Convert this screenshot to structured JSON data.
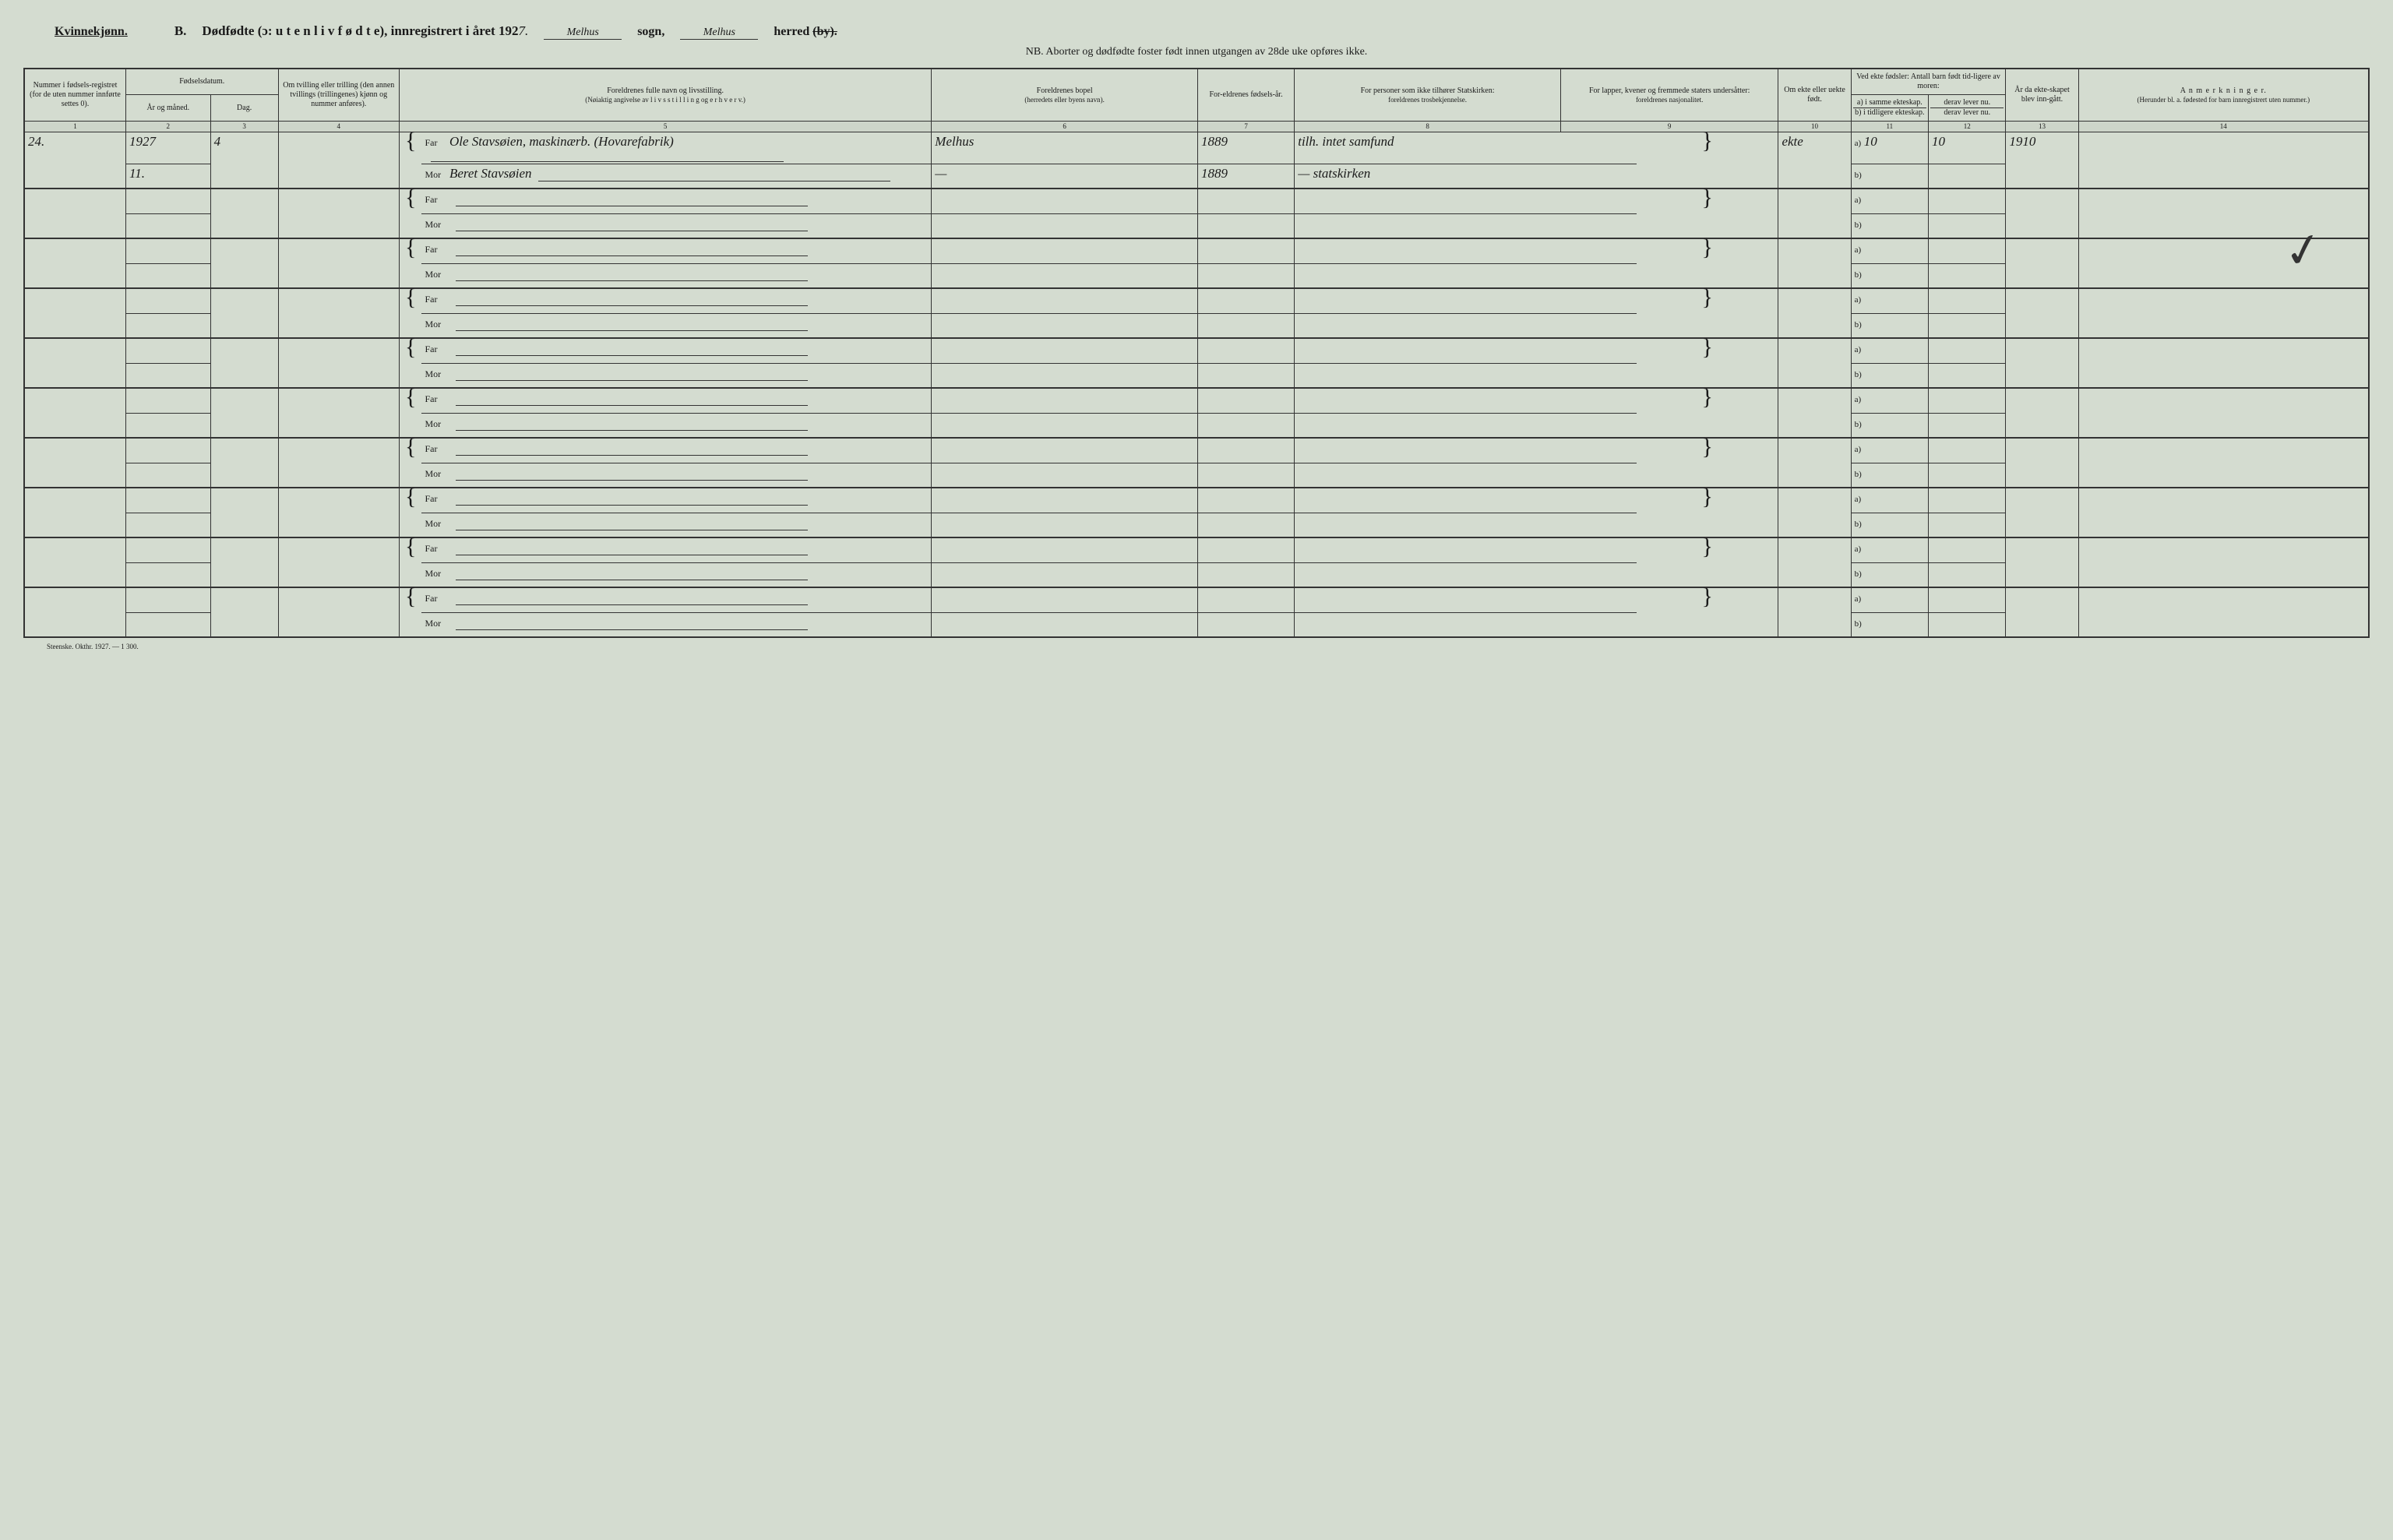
{
  "header": {
    "gender": "Kvinnekjønn.",
    "section": "B.",
    "title": "Dødfødte (ɔ: u t e n  l i v f ø d t e), innregistrert i året 192",
    "year_hand": "7.",
    "sogn_hand": "Melhus",
    "sogn_label": "sogn,",
    "herred_hand": "Melhus",
    "herred_label_pre": "herred",
    "herred_label_strike": "(by).",
    "nb": "NB.  Aborter og dødfødte foster født innen utgangen av 28de uke opføres ikke."
  },
  "columns": {
    "c1": "Nummer i fødsels-registret (for de uten nummer innførte settes 0).",
    "c2_top": "Fødselsdatum.",
    "c2a": "År og måned.",
    "c2b": "Dag.",
    "c4": "Om tvilling eller trilling (den annen tvillings (trillingenes) kjønn og nummer anføres).",
    "c5_top": "Foreldrenes fulle navn og livsstilling.",
    "c5_sub": "(Nøiaktig angivelse av  l i v s s t i l l i n g  og  e r h v e r v.)",
    "c6_top": "Foreldrenes bopel",
    "c6_sub": "(herredets eller byens navn).",
    "c7": "For-eldrenes fødsels-år.",
    "c8_top": "For personer som ikke tilhører Statskirken:",
    "c8_sub": "foreldrenes trosbekjennelse.",
    "c9_top": "For lapper, kvener og fremmede staters undersåtter:",
    "c9_sub": "foreldrenes nasjonalitet.",
    "c10": "Om ekte eller uekte født.",
    "c11_top": "Ved ekte fødsler: Antall barn født tid-ligere av moren:",
    "c11a": "a) i samme ekteskap.",
    "c11b": "b) i tidligere ekteskap.",
    "c12a": "derav lever nu.",
    "c12b": "derav lever nu.",
    "c13": "År da ekte-skapet blev inn-gått.",
    "c14_top": "A n m e r k n i n g e r.",
    "c14_sub": "(Herunder bl. a. fødested for barn innregistrert uten nummer.)"
  },
  "colnums": [
    "1",
    "2",
    "3",
    "4",
    "5",
    "6",
    "7",
    "8",
    "9",
    "10",
    "11",
    "12",
    "13",
    "14"
  ],
  "parent_labels": {
    "far": "Far",
    "mor": "Mor"
  },
  "ab_labels": {
    "a": "a)",
    "b": "b)"
  },
  "rows": [
    {
      "c1": "24.",
      "c2a_top": "1927",
      "c2a_bot": "11.",
      "c2b": "4",
      "c4": "",
      "far_name": "Ole Stavsøien, maskinærb. (Hovarefabrik)",
      "mor_name": "Beret Stavsøien",
      "far_bopel": "Melhus",
      "mor_bopel": "—",
      "far_year": "1889",
      "mor_year": "1889",
      "far_tros": "tilh. intet samfund",
      "mor_tros": "— statskirken",
      "far_nat": "",
      "mor_nat": "",
      "c10": "ekte",
      "c11a_val": "10",
      "c12a_val": "10",
      "c11b_val": "",
      "c12b_val": "",
      "c13": "1910",
      "c14": ""
    },
    {},
    {},
    {},
    {},
    {},
    {},
    {},
    {},
    {}
  ],
  "footer": "Steenske. Okthr. 1927. — 1 300.",
  "checkmark": "✓"
}
